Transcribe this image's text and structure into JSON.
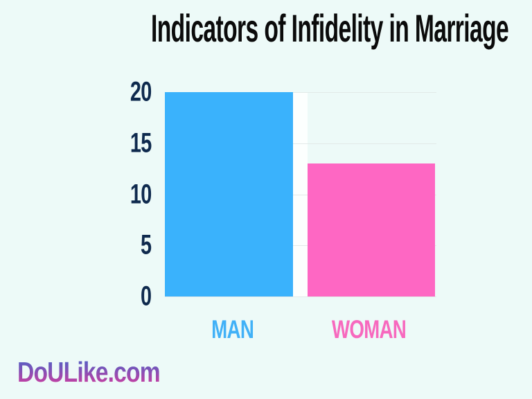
{
  "page": {
    "background_color": "#edfaf8",
    "brand": "DoULike.com",
    "brand_gradient_top": "#4a62c6",
    "brand_gradient_bottom": "#d93a9d"
  },
  "chart_data": {
    "type": "bar",
    "title": "Indicators of Infidelity in Marriage",
    "title_color": "#0b0b0b",
    "categories": [
      "MAN",
      "WOMAN"
    ],
    "values": [
      20,
      13
    ],
    "bar_colors": [
      "#3ab2fc",
      "#fe67c3"
    ],
    "category_label_colors": [
      "#41b1f7",
      "#f769be"
    ],
    "xlabel": "",
    "ylabel": "",
    "ylim": [
      0,
      20
    ],
    "yticks": [
      0,
      5,
      10,
      15,
      20
    ],
    "ytick_labels": [
      "20",
      "15",
      "10",
      "5",
      "0"
    ],
    "ytick_positions_pct": [
      0,
      25,
      50,
      75,
      100
    ],
    "axis_label_color": "#0f2a4e",
    "grid": "horizontal",
    "gridline_color": "#e2e9e8",
    "legend": "none"
  }
}
